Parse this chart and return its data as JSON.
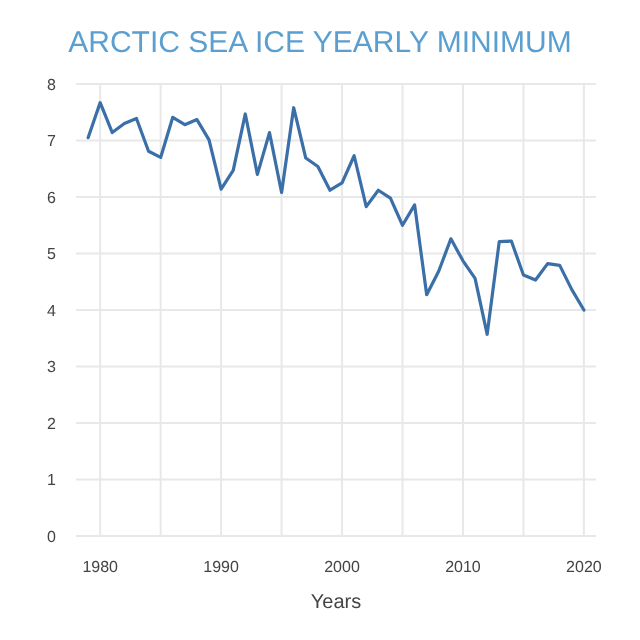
{
  "chart_data": {
    "type": "line",
    "title": "ARCTIC SEA ICE YEARLY MINIMUM",
    "xlabel": "Years",
    "x": [
      1979,
      1980,
      1981,
      1982,
      1983,
      1984,
      1985,
      1986,
      1987,
      1988,
      1989,
      1990,
      1991,
      1992,
      1993,
      1994,
      1995,
      1996,
      1997,
      1998,
      1999,
      2000,
      2001,
      2002,
      2003,
      2004,
      2005,
      2006,
      2007,
      2008,
      2009,
      2010,
      2011,
      2012,
      2013,
      2014,
      2015,
      2016,
      2017,
      2018,
      2019,
      2020
    ],
    "series": [
      {
        "color": "#3b6fa8",
        "values": [
          7.05,
          7.67,
          7.14,
          7.3,
          7.39,
          6.81,
          6.7,
          7.41,
          7.28,
          7.37,
          7.01,
          6.14,
          6.47,
          7.47,
          6.4,
          7.14,
          6.08,
          7.58,
          6.69,
          6.54,
          6.12,
          6.25,
          6.73,
          5.83,
          6.12,
          5.98,
          5.5,
          5.86,
          4.27,
          4.69,
          5.26,
          4.87,
          4.56,
          3.57,
          5.21,
          5.22,
          4.62,
          4.53,
          4.82,
          4.79,
          4.36,
          4.0
        ]
      }
    ],
    "xlim": [
      1978,
      2021
    ],
    "xticks": [
      1980,
      {
        "value": 1985,
        "label": null
      },
      1990,
      {
        "value": 1995,
        "label": null
      },
      2000,
      {
        "value": 2005,
        "label": null
      },
      2010,
      {
        "value": 2015,
        "label": null
      },
      2020
    ],
    "ylim": [
      0,
      8
    ],
    "yticks": [
      0,
      1,
      2,
      3,
      4,
      5,
      6,
      7,
      8
    ],
    "grid": true,
    "marker": "none",
    "line_style": "solid"
  }
}
